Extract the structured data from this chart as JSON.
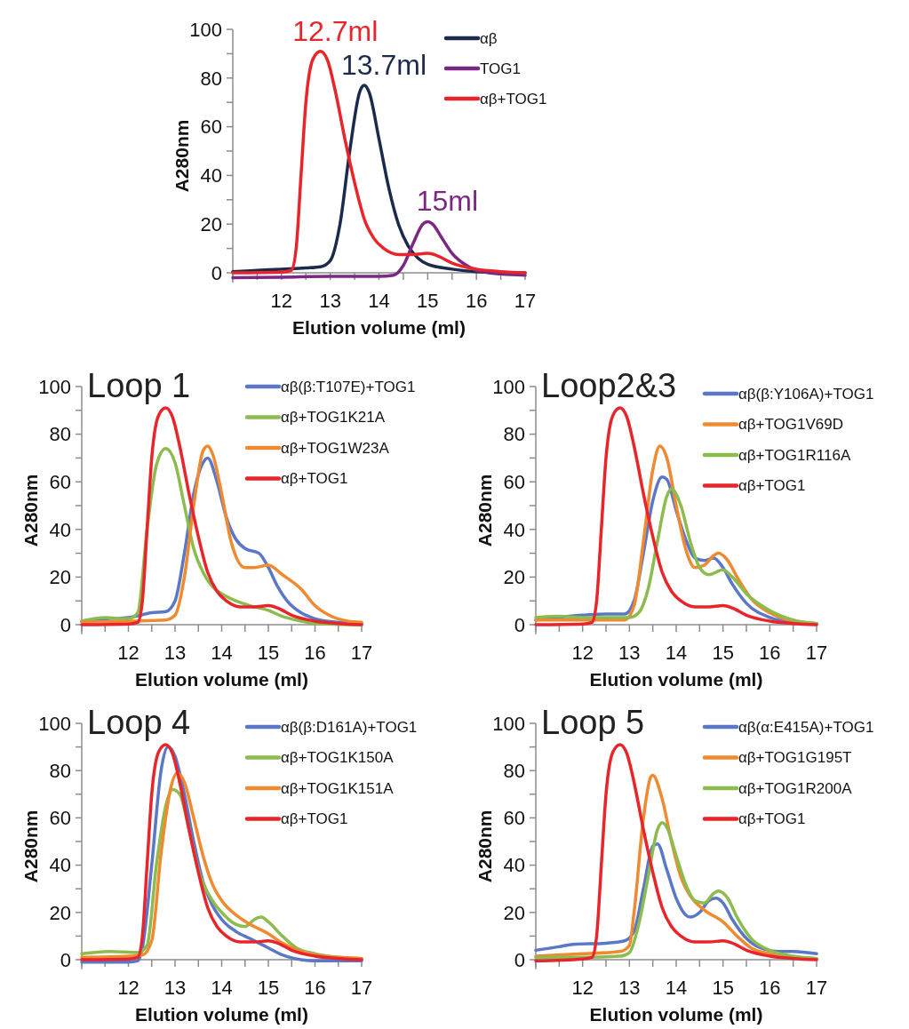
{
  "chart_data": [
    {
      "type": "line",
      "xlabel": "Elution volume (ml)",
      "ylabel": "A280nm",
      "xlim": [
        11,
        17
      ],
      "ylim": [
        -4,
        100
      ],
      "xticks": [
        {
          "value": 11,
          "label": null
        },
        {
          "value": 11.5,
          "label": null
        },
        12,
        {
          "value": 12.5,
          "label": null
        },
        13,
        {
          "value": 13.5,
          "label": null
        },
        14,
        {
          "value": 14.5,
          "label": null
        },
        15,
        {
          "value": 15.5,
          "label": null
        },
        16,
        {
          "value": 16.5,
          "label": null
        },
        17
      ],
      "yticks": [
        0,
        {
          "value": 10,
          "label": null
        },
        20,
        {
          "value": 30,
          "label": null
        },
        40,
        {
          "value": 50,
          "label": null
        },
        60,
        {
          "value": 70,
          "label": null
        },
        80,
        {
          "value": 90,
          "label": null
        },
        100
      ],
      "legend": "top right",
      "marker": "none",
      "line_style": "solid",
      "annotations": [
        {
          "text": "12.7ml",
          "x": 12.7,
          "y": 91
        },
        {
          "text": "13.7ml",
          "x": 13.7,
          "y": 77
        },
        {
          "text": "15ml",
          "x": 15,
          "y": 21
        }
      ],
      "series": [
        {
          "name": "αβ",
          "color": "#1c2b4b",
          "x": [
            11,
            11.5,
            12,
            12.5,
            12.8,
            13,
            13.2,
            13.4,
            13.6,
            13.7,
            13.8,
            14,
            14.2,
            14.4,
            14.6,
            14.8,
            15,
            15.5,
            16,
            17
          ],
          "values": [
            0.5,
            1,
            1.5,
            2,
            2.5,
            5,
            20,
            50,
            74,
            77,
            74,
            55,
            35,
            20,
            11,
            6,
            3.5,
            1.5,
            0.5,
            0
          ]
        },
        {
          "name": "TOG1",
          "color": "#7a2882",
          "x": [
            11,
            12,
            13,
            14,
            14.3,
            14.5,
            14.7,
            14.9,
            15,
            15.1,
            15.3,
            15.5,
            15.8,
            16,
            16.5,
            17
          ],
          "values": [
            -2,
            -1.8,
            -1.5,
            -1.5,
            -1,
            3,
            12,
            20,
            21,
            20,
            14,
            8,
            3,
            1,
            -0.5,
            -1
          ]
        },
        {
          "name": "αβ+TOG1",
          "color": "#e8252b",
          "x": [
            11,
            12,
            12.2,
            12.3,
            12.4,
            12.5,
            12.65,
            12.8,
            12.95,
            13.1,
            13.3,
            13.5,
            13.7,
            13.9,
            14.1,
            14.4,
            14.7,
            15,
            15.2,
            15.5,
            16,
            16.5,
            17
          ],
          "values": [
            0,
            0.3,
            1,
            10,
            40,
            70,
            88,
            91,
            87,
            75,
            55,
            37,
            22,
            14,
            10,
            7.5,
            7.5,
            8,
            7,
            4,
            1.5,
            0.5,
            0
          ]
        }
      ]
    },
    {
      "type": "line",
      "title": "Loop 1",
      "xlabel": "Elution volume (ml)",
      "ylabel": "A280nm",
      "xlim": [
        11,
        17
      ],
      "ylim": [
        -4,
        100
      ],
      "xticks": [
        {
          "value": 11,
          "label": null
        },
        {
          "value": 11.5,
          "label": null
        },
        12,
        {
          "value": 12.5,
          "label": null
        },
        13,
        {
          "value": 13.5,
          "label": null
        },
        14,
        {
          "value": 14.5,
          "label": null
        },
        15,
        {
          "value": 15.5,
          "label": null
        },
        16,
        {
          "value": 16.5,
          "label": null
        },
        17
      ],
      "yticks": [
        0,
        {
          "value": 10,
          "label": null
        },
        20,
        {
          "value": 30,
          "label": null
        },
        40,
        {
          "value": 50,
          "label": null
        },
        60,
        {
          "value": 70,
          "label": null
        },
        80,
        {
          "value": 90,
          "label": null
        },
        100
      ],
      "legend": "top right",
      "marker": "none",
      "line_style": "solid",
      "series": [
        {
          "name": "αβ(β:T107E)+TOG1",
          "color": "#5b77c8",
          "x": [
            11,
            11.5,
            12,
            12.5,
            12.8,
            13,
            13.2,
            13.4,
            13.6,
            13.7,
            13.9,
            14.1,
            14.3,
            14.5,
            14.8,
            15,
            15.2,
            15.4,
            15.7,
            16,
            16.5,
            17
          ],
          "values": [
            1.5,
            2.5,
            3,
            5,
            5.5,
            10,
            30,
            55,
            68,
            70,
            60,
            45,
            36,
            32,
            30,
            24,
            16,
            10,
            5,
            2.5,
            1,
            0.5
          ]
        },
        {
          "name": "αβ+TOG1K21A",
          "color": "#8cbb4e",
          "x": [
            11,
            11.5,
            12,
            12.2,
            12.4,
            12.6,
            12.8,
            13,
            13.2,
            13.4,
            13.6,
            13.8,
            14,
            14.3,
            14.6,
            15,
            15.3,
            15.7,
            16,
            17
          ],
          "values": [
            1.5,
            3,
            2.5,
            5,
            40,
            67,
            74,
            68,
            50,
            32,
            22,
            16,
            13,
            10,
            8,
            6,
            3.5,
            1.5,
            0.5,
            0
          ]
        },
        {
          "name": "αβ+TOG1W23A",
          "color": "#ef8a30",
          "x": [
            11,
            12,
            12.8,
            13,
            13.2,
            13.4,
            13.6,
            13.7,
            13.8,
            14,
            14.2,
            14.5,
            14.7,
            15,
            15.3,
            15.7,
            16,
            16.3,
            16.7,
            17
          ],
          "values": [
            1,
            1.5,
            2,
            4,
            20,
            50,
            73,
            75,
            72,
            55,
            35,
            24,
            24,
            25,
            21,
            15,
            8,
            4,
            1.5,
            1
          ]
        },
        {
          "name": "αβ+TOG1",
          "color": "#e8252b",
          "x": [
            11,
            12,
            12.2,
            12.3,
            12.4,
            12.5,
            12.65,
            12.8,
            12.95,
            13.1,
            13.3,
            13.5,
            13.7,
            13.9,
            14.1,
            14.4,
            14.7,
            15,
            15.2,
            15.5,
            16,
            16.5,
            17
          ],
          "values": [
            0,
            0.3,
            1,
            10,
            40,
            70,
            88,
            91,
            87,
            75,
            55,
            37,
            22,
            14,
            10,
            7.5,
            7.5,
            8,
            7,
            4,
            1.5,
            0.5,
            0
          ]
        }
      ]
    },
    {
      "type": "line",
      "title": "Loop2&3",
      "xlabel": "Elution volume (ml)",
      "ylabel": "A280nm",
      "xlim": [
        11,
        17
      ],
      "ylim": [
        -4,
        100
      ],
      "xticks": [
        {
          "value": 11,
          "label": null
        },
        {
          "value": 11.5,
          "label": null
        },
        12,
        {
          "value": 12.5,
          "label": null
        },
        13,
        {
          "value": 13.5,
          "label": null
        },
        14,
        {
          "value": 14.5,
          "label": null
        },
        15,
        {
          "value": 15.5,
          "label": null
        },
        16,
        {
          "value": 16.5,
          "label": null
        },
        17
      ],
      "yticks": [
        0,
        {
          "value": 10,
          "label": null
        },
        20,
        {
          "value": 30,
          "label": null
        },
        40,
        {
          "value": 50,
          "label": null
        },
        60,
        {
          "value": 70,
          "label": null
        },
        80,
        {
          "value": 90,
          "label": null
        },
        100
      ],
      "legend": "top right",
      "marker": "none",
      "line_style": "solid",
      "series": [
        {
          "name": "αβ(β:Y106A)+TOG1",
          "color": "#5b77c8",
          "x": [
            11,
            12,
            12.5,
            12.9,
            13.1,
            13.3,
            13.5,
            13.7,
            13.8,
            14,
            14.2,
            14.4,
            14.6,
            14.8,
            15,
            15.2,
            15.5,
            16,
            16.5,
            17
          ],
          "values": [
            2,
            4,
            4.5,
            4.5,
            10,
            30,
            52,
            62,
            61,
            48,
            36,
            28,
            27,
            28,
            24,
            17,
            9,
            3,
            1,
            0.5
          ]
        },
        {
          "name": "αβ+TOG1V69D",
          "color": "#ef8a30",
          "x": [
            11,
            12,
            12.9,
            13.1,
            13.3,
            13.5,
            13.65,
            13.8,
            14,
            14.2,
            14.4,
            14.6,
            14.8,
            14.9,
            15.1,
            15.3,
            15.6,
            16,
            16.5,
            17
          ],
          "values": [
            2,
            2,
            2,
            8,
            35,
            65,
            75,
            70,
            50,
            32,
            24,
            25,
            29,
            30,
            27,
            20,
            11,
            5,
            1.5,
            0.5
          ]
        },
        {
          "name": "αβ+TOG1R116A",
          "color": "#8cbb4e",
          "x": [
            11,
            11.5,
            12,
            13,
            13.2,
            13.4,
            13.6,
            13.8,
            13.9,
            14.1,
            14.3,
            14.5,
            14.7,
            15,
            15.2,
            15.5,
            16,
            16.5,
            17
          ],
          "values": [
            3,
            3.5,
            3,
            3,
            5,
            15,
            35,
            54,
            57,
            50,
            35,
            24,
            21,
            23,
            20,
            13,
            6,
            2,
            0.5
          ]
        },
        {
          "name": "αβ+TOG1",
          "color": "#e8252b",
          "x": [
            11,
            12,
            12.2,
            12.3,
            12.4,
            12.5,
            12.65,
            12.8,
            12.95,
            13.1,
            13.3,
            13.5,
            13.7,
            13.9,
            14.1,
            14.4,
            14.7,
            15,
            15.2,
            15.5,
            16,
            16.5,
            17
          ],
          "values": [
            0,
            0.3,
            1,
            10,
            40,
            70,
            88,
            91,
            87,
            75,
            55,
            37,
            22,
            14,
            10,
            7.5,
            7.5,
            8,
            7,
            4,
            1.5,
            0.5,
            0
          ]
        }
      ]
    },
    {
      "type": "line",
      "title": "Loop 4",
      "xlabel": "Elution volume (ml)",
      "ylabel": "A280nm",
      "xlim": [
        11,
        17
      ],
      "ylim": [
        -4,
        100
      ],
      "xticks": [
        {
          "value": 11,
          "label": null
        },
        {
          "value": 11.5,
          "label": null
        },
        12,
        {
          "value": 12.5,
          "label": null
        },
        13,
        {
          "value": 13.5,
          "label": null
        },
        14,
        {
          "value": 14.5,
          "label": null
        },
        15,
        {
          "value": 15.5,
          "label": null
        },
        16,
        {
          "value": 16.5,
          "label": null
        },
        17
      ],
      "yticks": [
        0,
        {
          "value": 10,
          "label": null
        },
        20,
        {
          "value": 30,
          "label": null
        },
        40,
        {
          "value": 50,
          "label": null
        },
        60,
        {
          "value": 70,
          "label": null
        },
        80,
        {
          "value": 90,
          "label": null
        },
        100
      ],
      "legend": "top right",
      "marker": "none",
      "line_style": "solid",
      "series": [
        {
          "name": "αβ(β:D161A)+TOG1",
          "color": "#5b77c8",
          "x": [
            11,
            12,
            12.2,
            12.3,
            12.5,
            12.7,
            12.85,
            13,
            13.2,
            13.4,
            13.6,
            13.8,
            14,
            14.3,
            14.6,
            15,
            15.3,
            15.7,
            16,
            17
          ],
          "values": [
            -1,
            -1,
            -0.5,
            5,
            40,
            80,
            90,
            86,
            70,
            50,
            33,
            23,
            17,
            12,
            9,
            5,
            2,
            0,
            -0.5,
            -0.5
          ]
        },
        {
          "name": "αβ+TOG1K150A",
          "color": "#8cbb4e",
          "x": [
            11,
            11.6,
            12.2,
            12.4,
            12.6,
            12.8,
            12.95,
            13.1,
            13.3,
            13.5,
            13.8,
            14,
            14.3,
            14.5,
            14.7,
            14.85,
            15,
            15.3,
            15.6,
            16,
            16.5,
            17
          ],
          "values": [
            2.5,
            3.5,
            3,
            6,
            40,
            65,
            72,
            70,
            55,
            38,
            25,
            20,
            15,
            14,
            17,
            18,
            16,
            10,
            5,
            2.5,
            1,
            0.5
          ]
        },
        {
          "name": "αβ+TOG1K151A",
          "color": "#ef8a30",
          "x": [
            11,
            12,
            12.3,
            12.5,
            12.7,
            12.9,
            13.05,
            13.2,
            13.4,
            13.6,
            13.8,
            14,
            14.3,
            14.6,
            15,
            15.3,
            15.7,
            16,
            16.5,
            17
          ],
          "values": [
            1,
            1.5,
            2,
            8,
            45,
            72,
            79,
            75,
            60,
            44,
            32,
            25,
            19,
            15,
            11,
            7,
            3.5,
            2,
            1,
            0.5
          ]
        },
        {
          "name": "αβ+TOG1",
          "color": "#e8252b",
          "x": [
            11,
            12,
            12.2,
            12.3,
            12.4,
            12.5,
            12.65,
            12.8,
            12.95,
            13.1,
            13.3,
            13.5,
            13.7,
            13.9,
            14.1,
            14.4,
            14.7,
            15,
            15.2,
            15.5,
            16,
            16.5,
            17
          ],
          "values": [
            0,
            0.3,
            1,
            10,
            40,
            70,
            88,
            91,
            87,
            75,
            55,
            37,
            22,
            14,
            10,
            7.5,
            7.5,
            8,
            7,
            4,
            1.5,
            0.5,
            0
          ]
        }
      ]
    },
    {
      "type": "line",
      "title": "Loop 5",
      "xlabel": "Elution volume (ml)",
      "ylabel": "A280nm",
      "xlim": [
        11,
        17
      ],
      "ylim": [
        -4,
        100
      ],
      "xticks": [
        {
          "value": 11,
          "label": null
        },
        {
          "value": 11.5,
          "label": null
        },
        12,
        {
          "value": 12.5,
          "label": null
        },
        13,
        {
          "value": 13.5,
          "label": null
        },
        14,
        {
          "value": 14.5,
          "label": null
        },
        15,
        {
          "value": 15.5,
          "label": null
        },
        16,
        {
          "value": 16.5,
          "label": null
        },
        17
      ],
      "yticks": [
        0,
        {
          "value": 10,
          "label": null
        },
        20,
        {
          "value": 30,
          "label": null
        },
        40,
        {
          "value": 50,
          "label": null
        },
        60,
        {
          "value": 70,
          "label": null
        },
        80,
        {
          "value": 90,
          "label": null
        },
        100
      ],
      "legend": "top right",
      "marker": "none",
      "line_style": "solid",
      "series": [
        {
          "name": "αβ(α:E415A)+TOG1",
          "color": "#5b77c8",
          "x": [
            11,
            11.5,
            11.8,
            12.5,
            12.9,
            13.1,
            13.3,
            13.5,
            13.6,
            13.8,
            14,
            14.2,
            14.3,
            14.5,
            14.7,
            14.85,
            15,
            15.2,
            15.5,
            15.8,
            16.2,
            16.5,
            17
          ],
          "values": [
            4,
            5.5,
            6.5,
            7,
            8,
            12,
            30,
            48,
            49,
            38,
            26,
            19,
            18,
            20,
            25,
            26,
            24,
            17,
            9,
            5,
            3.5,
            3.5,
            2.5
          ]
        },
        {
          "name": "αβ+TOG1G195T",
          "color": "#ef8a30",
          "x": [
            11,
            12,
            12.8,
            13,
            13.1,
            13.3,
            13.45,
            13.5,
            13.7,
            13.9,
            14.1,
            14.3,
            14.6,
            15,
            15.3,
            15.6,
            16,
            16.5,
            17
          ],
          "values": [
            1.5,
            2.5,
            3.5,
            6,
            20,
            60,
            77,
            78,
            68,
            50,
            35,
            27,
            21,
            16,
            10,
            5,
            2.5,
            1,
            0.5
          ]
        },
        {
          "name": "αβ+TOG1R200A",
          "color": "#8cbb4e",
          "x": [
            11,
            12,
            12.8,
            13,
            13.2,
            13.4,
            13.6,
            13.7,
            13.8,
            14,
            14.2,
            14.4,
            14.6,
            14.8,
            14.9,
            15.1,
            15.3,
            15.6,
            16,
            16.5,
            17
          ],
          "values": [
            1,
            1,
            1.5,
            3,
            15,
            35,
            55,
            58,
            56,
            44,
            32,
            25,
            24,
            28,
            29,
            26,
            18,
            9,
            4,
            1.5,
            0.5
          ]
        },
        {
          "name": "αβ+TOG1",
          "color": "#e8252b",
          "x": [
            11,
            12,
            12.2,
            12.3,
            12.4,
            12.5,
            12.65,
            12.8,
            12.95,
            13.1,
            13.3,
            13.5,
            13.7,
            13.9,
            14.1,
            14.4,
            14.7,
            15,
            15.2,
            15.5,
            16,
            16.5,
            17
          ],
          "values": [
            -0.5,
            0.3,
            1,
            10,
            40,
            70,
            88,
            91,
            87,
            75,
            55,
            37,
            22,
            14,
            10,
            7.5,
            7.5,
            8,
            7,
            4,
            1.5,
            0.5,
            0
          ]
        }
      ]
    }
  ]
}
